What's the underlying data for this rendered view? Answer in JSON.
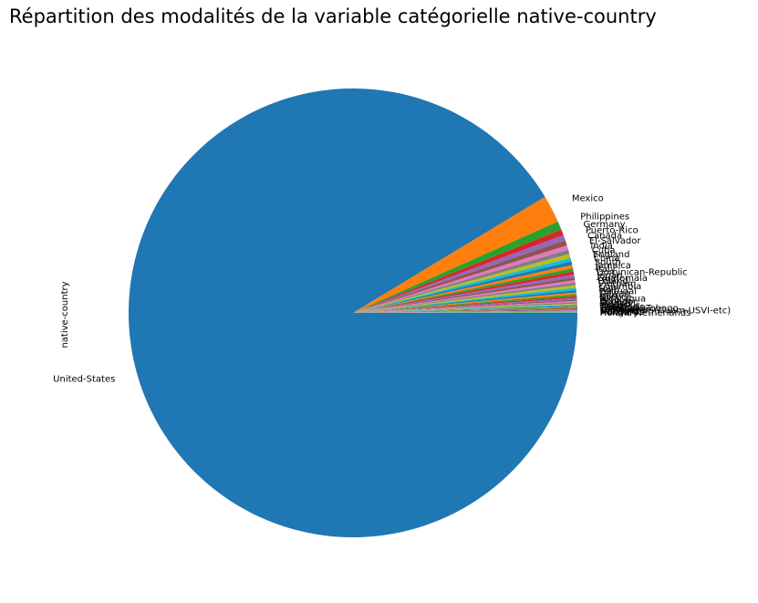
{
  "chart_data": {
    "type": "pie",
    "title": "Répartition des modalités de la variable catégorielle native-country",
    "ylabel": "native-country",
    "start_angle_deg": 0,
    "direction": "clockwise",
    "slices": [
      {
        "label": "United-States",
        "value": 43832,
        "color": "#1f77b4"
      },
      {
        "label": "Mexico",
        "value": 951,
        "color": "#ff7f0e"
      },
      {
        "label": "Philippines",
        "value": 295,
        "color": "#2ca02c"
      },
      {
        "label": "Germany",
        "value": 206,
        "color": "#d62728"
      },
      {
        "label": "Puerto-Rico",
        "value": 184,
        "color": "#9467bd"
      },
      {
        "label": "Canada",
        "value": 182,
        "color": "#8c564b"
      },
      {
        "label": "El-Salvador",
        "value": 155,
        "color": "#e377c2"
      },
      {
        "label": "India",
        "value": 151,
        "color": "#7f7f7f"
      },
      {
        "label": "Cuba",
        "value": 138,
        "color": "#bcbd22"
      },
      {
        "label": "England",
        "value": 127,
        "color": "#17becf"
      },
      {
        "label": "China",
        "value": 122,
        "color": "#1f77b4"
      },
      {
        "label": "South",
        "value": 115,
        "color": "#ff7f0e"
      },
      {
        "label": "Jamaica",
        "value": 106,
        "color": "#2ca02c"
      },
      {
        "label": "Italy",
        "value": 105,
        "color": "#d62728"
      },
      {
        "label": "Dominican-Republic",
        "value": 103,
        "color": "#9467bd"
      },
      {
        "label": "Japan",
        "value": 92,
        "color": "#8c564b"
      },
      {
        "label": "Guatemala",
        "value": 88,
        "color": "#e377c2"
      },
      {
        "label": "Poland",
        "value": 87,
        "color": "#7f7f7f"
      },
      {
        "label": "Vietnam",
        "value": 86,
        "color": "#bcbd22"
      },
      {
        "label": "Columbia",
        "value": 85,
        "color": "#17becf"
      },
      {
        "label": "Haiti",
        "value": 75,
        "color": "#1f77b4"
      },
      {
        "label": "Portugal",
        "value": 67,
        "color": "#ff7f0e"
      },
      {
        "label": "Taiwan",
        "value": 65,
        "color": "#2ca02c"
      },
      {
        "label": "Iran",
        "value": 59,
        "color": "#d62728"
      },
      {
        "label": "Greece",
        "value": 49,
        "color": "#9467bd"
      },
      {
        "label": "Nicaragua",
        "value": 49,
        "color": "#8c564b"
      },
      {
        "label": "Peru",
        "value": 46,
        "color": "#e377c2"
      },
      {
        "label": "Ecuador",
        "value": 45,
        "color": "#7f7f7f"
      },
      {
        "label": "France",
        "value": 38,
        "color": "#bcbd22"
      },
      {
        "label": "Ireland",
        "value": 37,
        "color": "#17becf"
      },
      {
        "label": "Hong",
        "value": 30,
        "color": "#1f77b4"
      },
      {
        "label": "Thailand",
        "value": 30,
        "color": "#ff7f0e"
      },
      {
        "label": "Cambodia",
        "value": 28,
        "color": "#2ca02c"
      },
      {
        "label": "Trinadad&Tobago",
        "value": 27,
        "color": "#d62728"
      },
      {
        "label": "Laos",
        "value": 23,
        "color": "#9467bd"
      },
      {
        "label": "Yugoslavia",
        "value": 23,
        "color": "#8c564b"
      },
      {
        "label": "Outlying-US(Guam-USVI-etc)",
        "value": 23,
        "color": "#e377c2"
      },
      {
        "label": "Scotland",
        "value": 21,
        "color": "#7f7f7f"
      },
      {
        "label": "Honduras",
        "value": 20,
        "color": "#bcbd22"
      },
      {
        "label": "Hungary",
        "value": 19,
        "color": "#17becf"
      },
      {
        "label": "Holand-Netherlands",
        "value": 1,
        "color": "#1f77b4"
      }
    ]
  }
}
